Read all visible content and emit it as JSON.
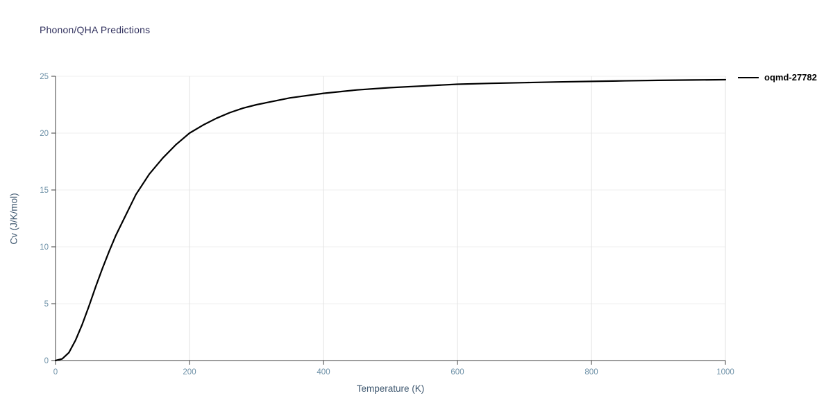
{
  "chart_data": {
    "type": "line",
    "title": "Phonon/QHA Predictions",
    "xlabel": "Temperature (K)",
    "ylabel": "Cv (J/K/mol)",
    "xlim": [
      0,
      1000
    ],
    "ylim": [
      0,
      25
    ],
    "xticks": [
      0,
      200,
      400,
      600,
      800,
      1000
    ],
    "yticks": [
      0,
      5,
      10,
      15,
      20,
      25
    ],
    "grid": "light-gray-vertical-and-horizontal",
    "legend_position": "top-right-outside",
    "series": [
      {
        "name": "oqmd-27782",
        "color": "#000000",
        "x": [
          0,
          10,
          20,
          30,
          40,
          50,
          60,
          70,
          80,
          90,
          100,
          120,
          140,
          160,
          180,
          200,
          220,
          240,
          260,
          280,
          300,
          350,
          400,
          450,
          500,
          550,
          600,
          650,
          700,
          750,
          800,
          850,
          900,
          950,
          1000
        ],
        "y": [
          0,
          0.15,
          0.7,
          1.8,
          3.2,
          4.8,
          6.5,
          8.1,
          9.6,
          11.0,
          12.2,
          14.6,
          16.4,
          17.8,
          19.0,
          20.0,
          20.7,
          21.3,
          21.8,
          22.2,
          22.5,
          23.1,
          23.5,
          23.8,
          24.0,
          24.15,
          24.3,
          24.38,
          24.44,
          24.5,
          24.55,
          24.6,
          24.64,
          24.67,
          24.7
        ]
      }
    ]
  },
  "colors": {
    "title": "#31315e",
    "axis_label": "#3f5870",
    "tick_label": "#6b8fa6",
    "axis_line": "#3c3c3c",
    "grid_vertical": "#e2e2e2",
    "grid_horizontal": "#efefef",
    "series_line": "#000000"
  }
}
